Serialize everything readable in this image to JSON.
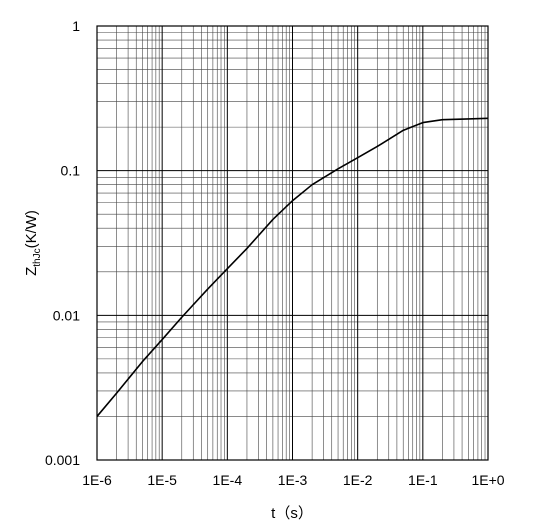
{
  "chart_data": {
    "type": "line",
    "title": "",
    "xlabel": "t（s）",
    "ylabel_main": "Z",
    "ylabel_sub": "thJc",
    "ylabel_rest": "(K/W)",
    "x_scale": "log",
    "y_scale": "log",
    "xlim": [
      1e-06,
      1
    ],
    "ylim": [
      0.001,
      1
    ],
    "grid": true,
    "x_ticks": [
      {
        "value": 1e-06,
        "label": "1E-6"
      },
      {
        "value": 1e-05,
        "label": "1E-5"
      },
      {
        "value": 0.0001,
        "label": "1E-4"
      },
      {
        "value": 0.001,
        "label": "1E-3"
      },
      {
        "value": 0.01,
        "label": "1E-2"
      },
      {
        "value": 0.1,
        "label": "1E-1"
      },
      {
        "value": 1,
        "label": "1E+0"
      }
    ],
    "y_ticks": [
      {
        "value": 0.001,
        "label": "0.001"
      },
      {
        "value": 0.01,
        "label": "0.01"
      },
      {
        "value": 0.1,
        "label": "0.1"
      },
      {
        "value": 1,
        "label": "1"
      }
    ],
    "series": [
      {
        "color": "#000000",
        "x": [
          1e-06,
          2e-06,
          5e-06,
          1e-05,
          2e-05,
          5e-05,
          0.0001,
          0.0002,
          0.0005,
          0.001,
          0.002,
          0.005,
          0.01,
          0.02,
          0.05,
          0.1,
          0.2,
          0.5,
          1
        ],
        "y": [
          0.002,
          0.0029,
          0.0048,
          0.0068,
          0.0097,
          0.0152,
          0.021,
          0.029,
          0.046,
          0.062,
          0.08,
          0.103,
          0.123,
          0.147,
          0.19,
          0.215,
          0.225,
          0.228,
          0.23
        ]
      }
    ]
  }
}
